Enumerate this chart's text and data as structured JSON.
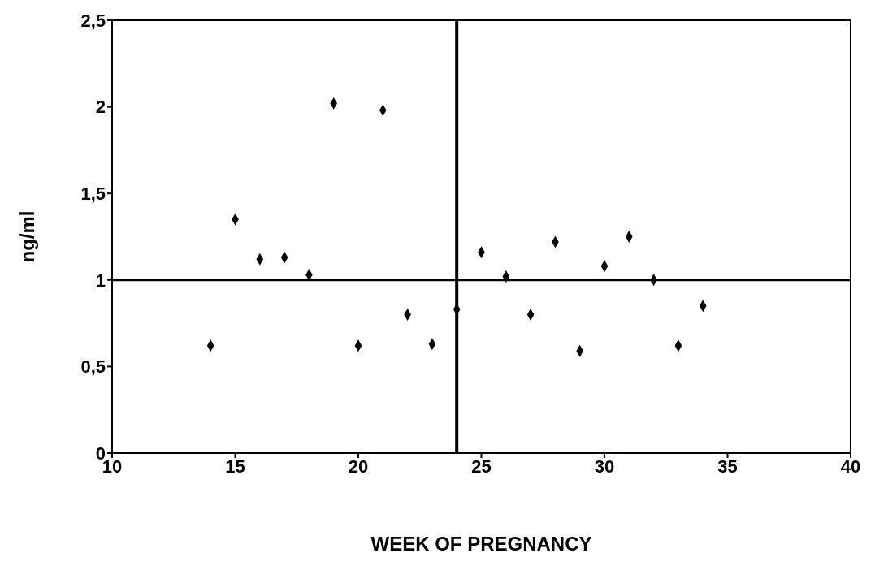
{
  "chart_data": {
    "type": "scatter",
    "xlabel": "WEEK OF PREGNANCY",
    "ylabel": "ng/ml",
    "x": [
      14,
      15,
      16,
      17,
      18,
      19,
      20,
      21,
      22,
      23,
      24,
      25,
      26,
      27,
      28,
      29,
      30,
      31,
      32,
      33,
      34
    ],
    "series": [
      {
        "color": "#000000",
        "values": [
          0.62,
          1.35,
          1.12,
          1.13,
          1.03,
          2.02,
          0.62,
          1.98,
          0.8,
          0.63,
          0.83,
          1.16,
          1.02,
          0.8,
          1.22,
          0.59,
          1.08,
          1.25,
          1.0,
          0.62,
          0.85
        ]
      }
    ],
    "xlim": [
      10,
      40
    ],
    "xticks": [
      10,
      15,
      20,
      25,
      30,
      35,
      40
    ],
    "ylim": [
      0,
      2.5
    ],
    "yticks": [
      0,
      {
        "value": 0.5,
        "label": "0,5"
      },
      1,
      {
        "value": 1.5,
        "label": "1,5"
      },
      2,
      {
        "value": 2.5,
        "label": "2,5"
      }
    ],
    "ref_lines": [
      {
        "axis": "y",
        "value": 1,
        "color": "#000000"
      },
      {
        "axis": "x",
        "value": 24,
        "color": "#000000"
      }
    ],
    "marker": "diamond"
  }
}
